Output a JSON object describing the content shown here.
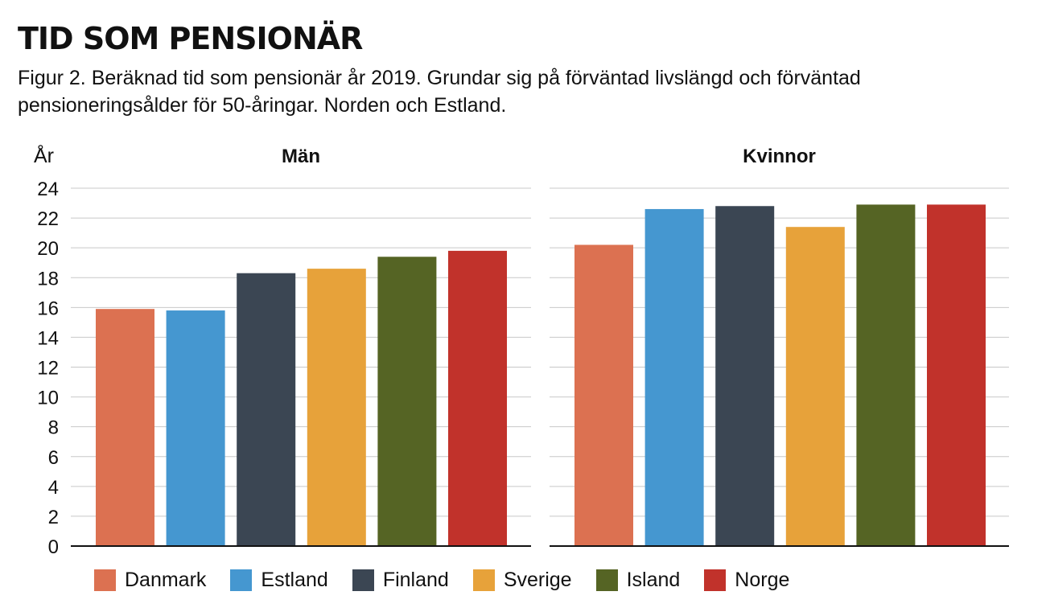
{
  "header": {
    "title": "TID SOM PENSIONÄR",
    "subtitle_line1": "Figur 2. Beräknad tid som pensionär år 2019. Grundar sig på förväntad livslängd och förväntad",
    "subtitle_line2": "pensioneringsålder för 50-åringar. Norden och Estland."
  },
  "chart_data": {
    "type": "bar",
    "ylabel": "År",
    "ylim": [
      0,
      24
    ],
    "yticks": [
      0,
      2,
      4,
      6,
      8,
      10,
      12,
      14,
      16,
      18,
      20,
      22,
      24
    ],
    "grid": true,
    "legend_placement": "bottom",
    "categories": [
      "Danmark",
      "Estland",
      "Finland",
      "Sverige",
      "Island",
      "Norge"
    ],
    "colors": [
      "#DC7151",
      "#4597D0",
      "#3B4653",
      "#E7A23A",
      "#556424",
      "#C1322B"
    ],
    "panels": [
      {
        "title": "Män",
        "values": [
          15.9,
          15.8,
          18.3,
          18.6,
          19.4,
          19.8
        ]
      },
      {
        "title": "Kvinnor",
        "values": [
          20.2,
          22.6,
          22.8,
          21.4,
          22.9,
          22.9
        ]
      }
    ]
  }
}
